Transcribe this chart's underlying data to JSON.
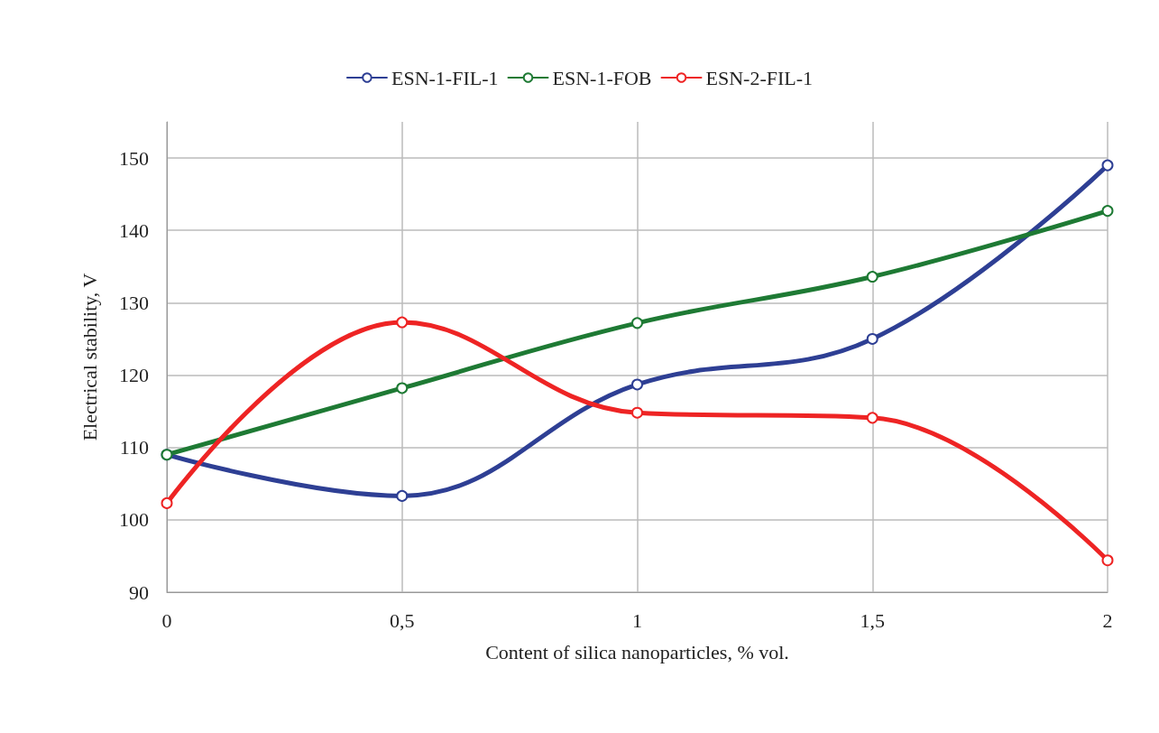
{
  "chart_data": {
    "type": "line",
    "xlabel": "Content of silica nanoparticles, % vol.",
    "ylabel": "Electrical stability, V",
    "x": [
      0,
      0.5,
      1,
      1.5,
      2
    ],
    "series": [
      {
        "name": "ESN-1-FIL-1",
        "color": "#2e3f94",
        "values": [
          109,
          103.3,
          118.7,
          125,
          149
        ]
      },
      {
        "name": "ESN-1-FOB",
        "color": "#1e7a34",
        "values": [
          109,
          118.2,
          127.2,
          133.6,
          142.7
        ]
      },
      {
        "name": "ESN-2-FIL-1",
        "color": "#ee2424",
        "values": [
          102.3,
          127.3,
          114.8,
          114.1,
          94.4
        ]
      }
    ],
    "xlim": [
      0,
      2
    ],
    "xticks": [
      0,
      {
        "value": 0.5,
        "label": "0,5"
      },
      1,
      {
        "value": 1.5,
        "label": "1,5"
      },
      2
    ],
    "ylim": [
      90,
      155
    ],
    "yticks": [
      90,
      100,
      110,
      120,
      130,
      140,
      150
    ],
    "grid": true,
    "legend": "top",
    "marker": "circle",
    "line_style": "solid"
  }
}
